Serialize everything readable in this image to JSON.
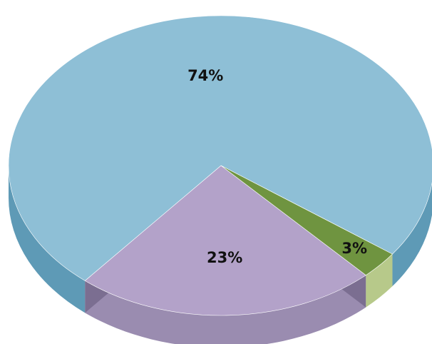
{
  "chart_data": {
    "type": "pie",
    "style": "3d",
    "title": "",
    "slices": [
      {
        "value": 74,
        "label": "74%",
        "color": "#8ebfd6",
        "side_color": "#5e9ab6",
        "wall_color": "#3f6e88"
      },
      {
        "value": 3,
        "label": "3%",
        "color": "#6f9440",
        "side_color": "#b7c98a",
        "wall_color": "#3f5b24"
      },
      {
        "value": 23,
        "label": "23%",
        "color": "#b3a2c9",
        "side_color": "#9a8cb0",
        "wall_color": "#625679"
      }
    ],
    "legend": "none",
    "grid": false
  }
}
